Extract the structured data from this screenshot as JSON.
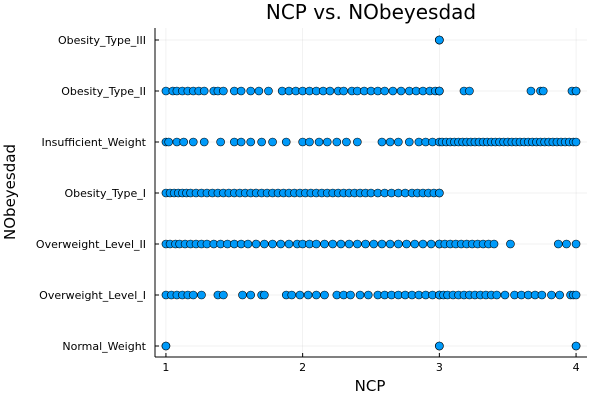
{
  "chart_data": {
    "type": "scatter",
    "title": "NCP vs. NObeyesdad",
    "xlabel": "NCP",
    "ylabel": "NObeyesdad",
    "xlim": [
      0.92,
      4.08
    ],
    "x_ticks": [
      1,
      2,
      3,
      4
    ],
    "x_tick_labels": [
      "1",
      "2",
      "3",
      "4"
    ],
    "categories": [
      "Normal_Weight",
      "Overweight_Level_I",
      "Overweight_Level_II",
      "Obesity_Type_I",
      "Insufficient_Weight",
      "Obesity_Type_II",
      "Obesity_Type_III"
    ],
    "grid": true,
    "legend": "none",
    "marker_color": "#009AF9",
    "points": [
      {
        "category": "Obesity_Type_III",
        "x": [
          3.0,
          3.0,
          3.0,
          3.0,
          3.0
        ]
      },
      {
        "category": "Obesity_Type_II",
        "x": [
          1.0,
          1.05,
          1.08,
          1.12,
          1.16,
          1.2,
          1.24,
          1.28,
          1.35,
          1.38,
          1.42,
          1.5,
          1.55,
          1.62,
          1.68,
          1.75,
          1.85,
          1.9,
          1.95,
          2.0,
          2.05,
          2.1,
          2.15,
          2.2,
          2.26,
          2.3,
          2.36,
          2.4,
          2.45,
          2.5,
          2.55,
          2.6,
          2.66,
          2.72,
          2.78,
          2.83,
          2.88,
          2.93,
          2.97,
          3.0,
          3.0,
          3.0,
          3.18,
          3.22,
          3.67,
          3.74,
          3.76,
          3.97,
          4.0,
          4.0
        ]
      },
      {
        "category": "Insufficient_Weight",
        "x": [
          1.0,
          1.02,
          1.08,
          1.13,
          1.2,
          1.28,
          1.4,
          1.5,
          1.55,
          1.62,
          1.7,
          1.78,
          1.88,
          2.0,
          2.05,
          2.12,
          2.18,
          2.25,
          2.32,
          2.4,
          2.58,
          2.64,
          2.7,
          2.78,
          2.85,
          2.9,
          2.95,
          3.0,
          3.02,
          3.05,
          3.08,
          3.11,
          3.14,
          3.17,
          3.2,
          3.23,
          3.26,
          3.29,
          3.32,
          3.35,
          3.38,
          3.41,
          3.44,
          3.47,
          3.5,
          3.53,
          3.56,
          3.59,
          3.62,
          3.65,
          3.68,
          3.71,
          3.74,
          3.77,
          3.8,
          3.83,
          3.86,
          3.89,
          3.92,
          3.95,
          3.98,
          4.0
        ]
      },
      {
        "category": "Obesity_Type_I",
        "x": [
          1.0,
          1.03,
          1.06,
          1.09,
          1.12,
          1.15,
          1.18,
          1.22,
          1.26,
          1.3,
          1.34,
          1.38,
          1.42,
          1.46,
          1.5,
          1.54,
          1.58,
          1.62,
          1.66,
          1.7,
          1.74,
          1.78,
          1.82,
          1.86,
          1.9,
          1.94,
          1.98,
          2.02,
          2.06,
          2.1,
          2.14,
          2.18,
          2.22,
          2.26,
          2.3,
          2.34,
          2.38,
          2.42,
          2.46,
          2.5,
          2.55,
          2.6,
          2.65,
          2.7,
          2.75,
          2.8,
          2.84,
          2.88,
          2.92,
          2.96,
          3.0,
          3.0
        ]
      },
      {
        "category": "Overweight_Level_II",
        "x": [
          1.0,
          1.03,
          1.07,
          1.1,
          1.14,
          1.18,
          1.22,
          1.26,
          1.3,
          1.35,
          1.4,
          1.45,
          1.5,
          1.55,
          1.6,
          1.66,
          1.72,
          1.78,
          1.84,
          1.9,
          1.96,
          2.0,
          2.05,
          2.1,
          2.16,
          2.22,
          2.28,
          2.34,
          2.4,
          2.46,
          2.52,
          2.58,
          2.64,
          2.7,
          2.76,
          2.82,
          2.88,
          2.94,
          3.0,
          3.0,
          3.04,
          3.08,
          3.12,
          3.16,
          3.2,
          3.24,
          3.28,
          3.32,
          3.36,
          3.4,
          3.52,
          3.87,
          3.93,
          4.0
        ]
      },
      {
        "category": "Overweight_Level_I",
        "x": [
          1.0,
          1.04,
          1.08,
          1.12,
          1.16,
          1.2,
          1.26,
          1.38,
          1.42,
          1.56,
          1.62,
          1.7,
          1.72,
          1.88,
          1.92,
          1.98,
          2.04,
          2.1,
          2.16,
          2.25,
          2.3,
          2.35,
          2.42,
          2.48,
          2.55,
          2.6,
          2.65,
          2.7,
          2.75,
          2.8,
          2.85,
          2.9,
          2.95,
          3.0,
          3.0,
          3.03,
          3.06,
          3.1,
          3.14,
          3.18,
          3.22,
          3.26,
          3.3,
          3.34,
          3.38,
          3.42,
          3.48,
          3.55,
          3.6,
          3.65,
          3.7,
          3.75,
          3.82,
          3.88,
          3.96,
          3.98,
          4.0
        ]
      },
      {
        "category": "Normal_Weight",
        "x": [
          1.0,
          1.0,
          3.0,
          3.0,
          3.0,
          4.0,
          4.0
        ]
      }
    ]
  }
}
